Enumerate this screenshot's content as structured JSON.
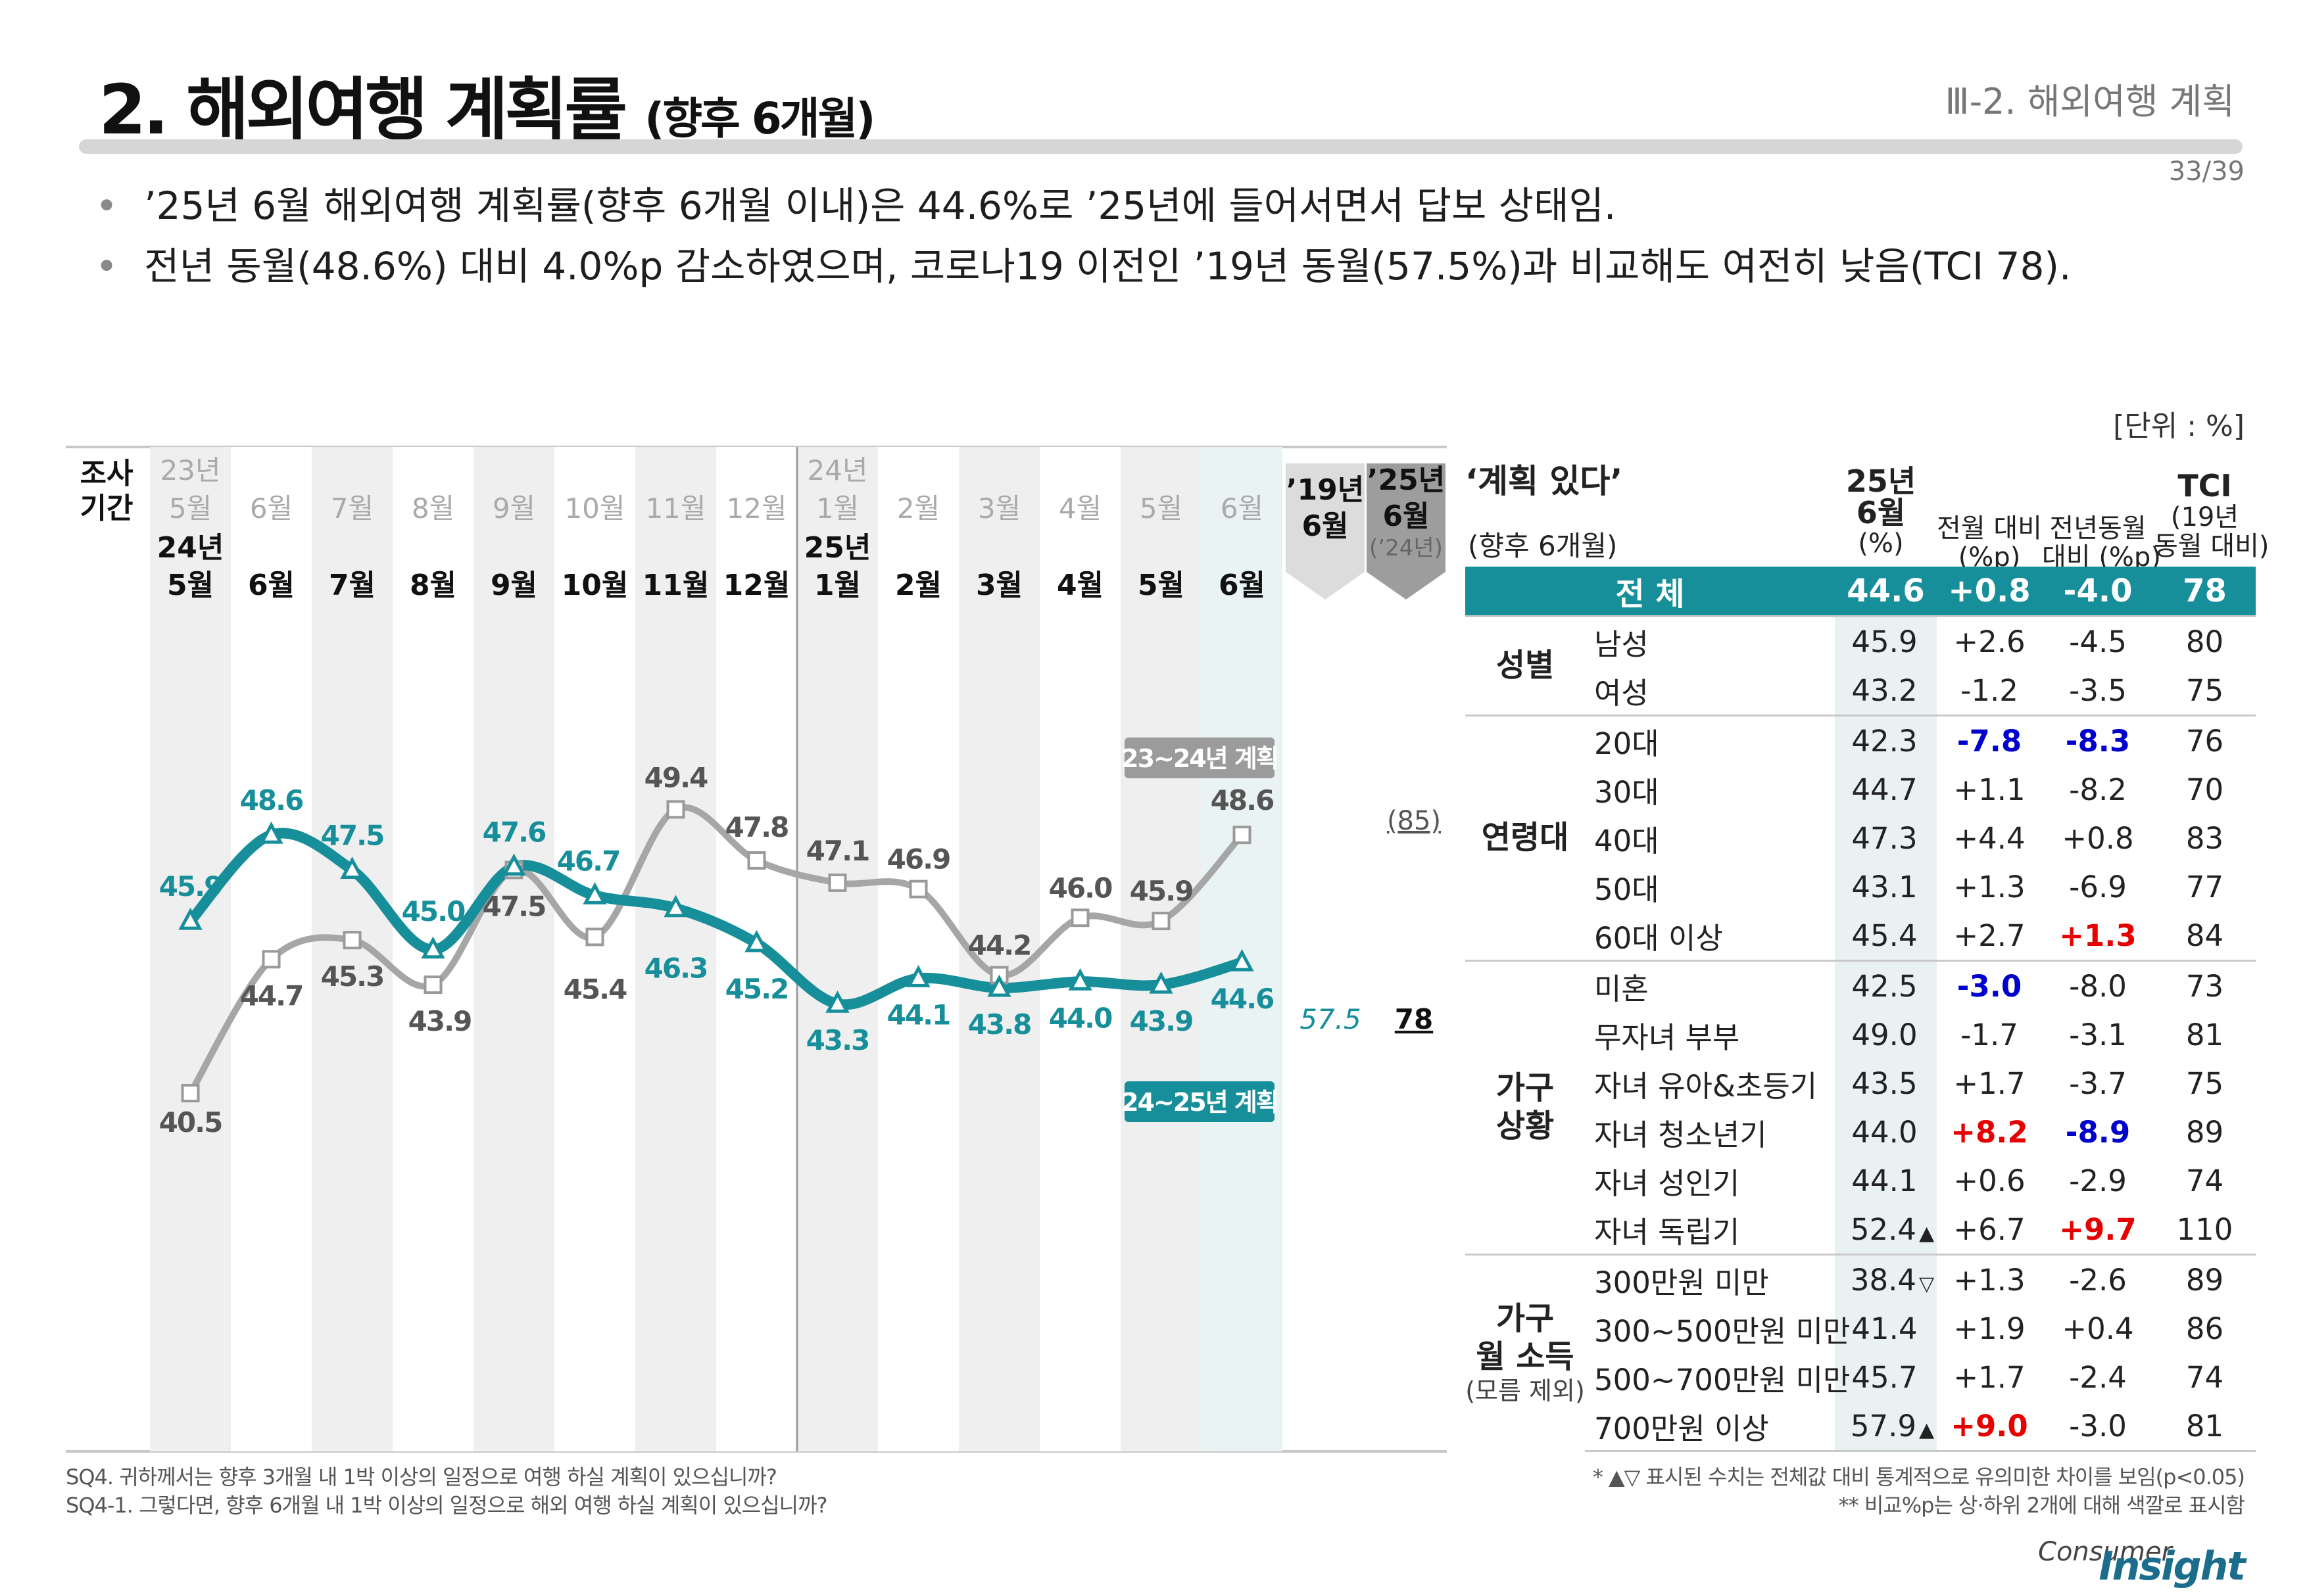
{
  "title": {
    "main": "2. 해외여행 계획률",
    "sub": "(향후 6개월)"
  },
  "section": "Ⅲ-2. 해외여행 계획",
  "page_number": "33/39",
  "bullets": [
    "’25년 6월 해외여행 계획률(향후 6개월 이내)은 44.6%로 ’25년에 들어서면서 답보 상태임.",
    "전년 동월(48.6%) 대비 4.0%p 감소하였으며, 코로나19 이전인 ’19년 동월(57.5%)과 비교해도 여전히 낮음(TCI 78)."
  ],
  "bullet_glyph": "•",
  "unit_label": "[단위 : %]",
  "chart_data": {
    "type": "line",
    "title": "해외여행 계획률 (향후 6개월)",
    "period_label": [
      "조사",
      "기간"
    ],
    "x_top": [
      {
        "year": "23년",
        "month": "5월"
      },
      {
        "month": "6월"
      },
      {
        "month": "7월"
      },
      {
        "month": "8월"
      },
      {
        "month": "9월"
      },
      {
        "month": "10월"
      },
      {
        "month": "11월"
      },
      {
        "month": "12월"
      },
      {
        "year": "24년",
        "month": "1월"
      },
      {
        "month": "2월"
      },
      {
        "month": "3월"
      },
      {
        "month": "4월"
      },
      {
        "month": "5월"
      },
      {
        "month": "6월"
      }
    ],
    "x_bottom": [
      {
        "year": "24년",
        "month": "5월"
      },
      {
        "month": "6월"
      },
      {
        "month": "7월"
      },
      {
        "month": "8월"
      },
      {
        "month": "9월"
      },
      {
        "month": "10월"
      },
      {
        "month": "11월"
      },
      {
        "month": "12월"
      },
      {
        "year": "25년",
        "month": "1월"
      },
      {
        "month": "2월"
      },
      {
        "month": "3월"
      },
      {
        "month": "4월"
      },
      {
        "month": "5월"
      },
      {
        "month": "6월"
      }
    ],
    "series": [
      {
        "name": "23~24년 계획",
        "color": "#a6a6a6",
        "values": [
          40.5,
          44.7,
          45.3,
          43.9,
          47.5,
          45.4,
          49.4,
          47.8,
          47.1,
          46.9,
          44.2,
          46.0,
          45.9,
          48.6
        ],
        "labels": [
          "40.5",
          "44.7",
          "45.3",
          "43.9",
          "47.5",
          "45.4",
          "49.4",
          "47.8",
          "47.1",
          "46.9",
          "44.2",
          "46.0",
          "45.9",
          "48.6"
        ]
      },
      {
        "name": "24~25년 계획",
        "color": "#178f9a",
        "values": [
          45.9,
          48.6,
          47.5,
          45.0,
          47.6,
          46.7,
          46.3,
          45.2,
          43.3,
          44.1,
          43.8,
          44.0,
          43.9,
          44.6
        ],
        "labels": [
          "45.9",
          "48.6",
          "47.5",
          "45.0",
          "47.6",
          "46.7",
          "46.3",
          "45.2",
          "43.3",
          "44.1",
          "43.8",
          "44.0",
          "43.9",
          "44.6"
        ]
      }
    ],
    "ylim": [
      38,
      52
    ],
    "reference": {
      "col19": {
        "header": [
          "’19년",
          "6월"
        ],
        "value": "57.5"
      },
      "col25": {
        "header": [
          "’25년",
          "6월"
        ],
        "sub": "(’24년)",
        "value_prev": "(85)",
        "value": "78"
      }
    }
  },
  "table": {
    "title": "‘계획 있다’",
    "subtitle": "(향후 6개월)",
    "headers": [
      {
        "l1": "25년",
        "l2": "6월",
        "l3": "(%)"
      },
      {
        "l1": "전월 대비",
        "l2": "(%p)"
      },
      {
        "l1": "전년동월",
        "l2": "대비 (%p)"
      },
      {
        "l1": "TCI",
        "l2": "(19년",
        "l3": "동월 대비)"
      }
    ],
    "total": {
      "label": "전  체",
      "values": [
        "44.6",
        "+0.8",
        "-4.0",
        "78"
      ]
    },
    "groups": [
      {
        "name": "성별",
        "rows": [
          {
            "label": "남성",
            "v": "45.9",
            "m": "",
            "mom": "+2.6",
            "yoy": "-4.5",
            "tci": "80"
          },
          {
            "label": "여성",
            "v": "43.2",
            "m": "",
            "mom": "-1.2",
            "yoy": "-3.5",
            "tci": "75"
          }
        ]
      },
      {
        "name": "연령대",
        "rows": [
          {
            "label": "20대",
            "v": "42.3",
            "m": "",
            "mom": "-7.8",
            "mom_c": "blue",
            "yoy": "-8.3",
            "yoy_c": "blue",
            "tci": "76"
          },
          {
            "label": "30대",
            "v": "44.7",
            "m": "",
            "mom": "+1.1",
            "yoy": "-8.2",
            "tci": "70"
          },
          {
            "label": "40대",
            "v": "47.3",
            "m": "",
            "mom": "+4.4",
            "yoy": "+0.8",
            "tci": "83"
          },
          {
            "label": "50대",
            "v": "43.1",
            "m": "",
            "mom": "+1.3",
            "yoy": "-6.9",
            "tci": "77"
          },
          {
            "label": "60대 이상",
            "v": "45.4",
            "m": "",
            "mom": "+2.7",
            "yoy": "+1.3",
            "yoy_c": "red",
            "tci": "84"
          }
        ]
      },
      {
        "name": "가구|상황",
        "rows": [
          {
            "label": "미혼",
            "v": "42.5",
            "m": "",
            "mom": "-3.0",
            "mom_c": "blue",
            "yoy": "-8.0",
            "tci": "73"
          },
          {
            "label": "무자녀 부부",
            "v": "49.0",
            "m": "",
            "mom": "-1.7",
            "yoy": "-3.1",
            "tci": "81"
          },
          {
            "label": "자녀 유아&초등기",
            "v": "43.5",
            "m": "",
            "mom": "+1.7",
            "yoy": "-3.7",
            "tci": "75"
          },
          {
            "label": "자녀 청소년기",
            "v": "44.0",
            "m": "",
            "mom": "+8.2",
            "mom_c": "red",
            "yoy": "-8.9",
            "yoy_c": "blue",
            "tci": "89"
          },
          {
            "label": "자녀 성인기",
            "v": "44.1",
            "m": "",
            "mom": "+0.6",
            "yoy": "-2.9",
            "tci": "74"
          },
          {
            "label": "자녀 독립기",
            "v": "52.4",
            "m": "▲",
            "mom": "+6.7",
            "yoy": "+9.7",
            "yoy_c": "red",
            "tci": "110"
          }
        ]
      },
      {
        "name": "가구|월 소득",
        "note": "(모름 제외)",
        "rows": [
          {
            "label": "300만원 미만",
            "v": "38.4",
            "m": "▽",
            "mom": "+1.3",
            "yoy": "-2.6",
            "tci": "89"
          },
          {
            "label": "300~500만원 미만",
            "v": "41.4",
            "m": "",
            "mom": "+1.9",
            "yoy": "+0.4",
            "tci": "86"
          },
          {
            "label": "500~700만원 미만",
            "v": "45.7",
            "m": "",
            "mom": "+1.7",
            "yoy": "-2.4",
            "tci": "74"
          },
          {
            "label": "700만원 이상",
            "v": "57.9",
            "m": "▲",
            "mom": "+9.0",
            "mom_c": "red",
            "yoy": "-3.0",
            "tci": "81"
          }
        ]
      }
    ]
  },
  "footnotes": {
    "q1": "SQ4. 귀하께서는 향후 3개월 내 1박 이상의 일정으로 여행 하실 계획이 있으십니까?",
    "q2": "SQ4-1. 그렇다면, 향후 6개월 내 1박 이상의 일정으로 해외 여행 하실 계획이 있으십니까?",
    "n1": "* ▲▽ 표시된 수치는 전체값 대비 통계적으로 유의미한 차이를 보임(p<0.05)",
    "n2": "** 비교%p는 상·하위 2개에 대해 색깔로 표시함"
  },
  "brand": {
    "pre": "Consumer",
    "main": "Insight"
  },
  "colors": {
    "accent": "#178f9a",
    "gray_line": "#a6a6a6",
    "red": "#e60000",
    "blue": "#0000cc"
  }
}
